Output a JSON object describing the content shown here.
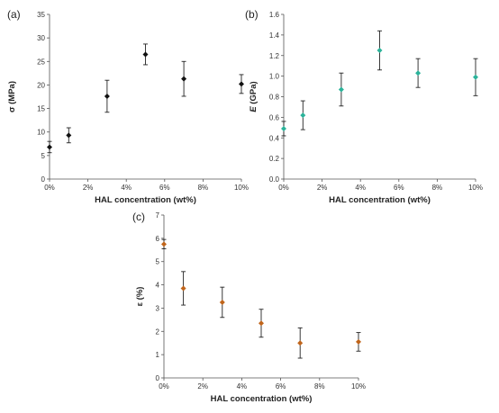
{
  "chart_data": [
    {
      "type": "scatter",
      "panel_label": "(a)",
      "xlabel": "HAL concentration (wt%)",
      "ylabel": "σ (MPa)",
      "ylabel_italic_part": "",
      "x_tick_labels": [
        "0%",
        "2%",
        "4%",
        "6%",
        "8%",
        "10%"
      ],
      "xlim": [
        0,
        10
      ],
      "ylim": [
        0,
        35
      ],
      "y_ticks": [
        0,
        5,
        10,
        15,
        20,
        25,
        30,
        35
      ],
      "y_tick_labels": [
        "0",
        "5",
        "10",
        "15",
        "20",
        "25",
        "30",
        "35"
      ],
      "marker_color": "#111111",
      "marker": "diamond",
      "grid": false,
      "points": [
        {
          "x": 0,
          "y": 6.8,
          "err": 1.2
        },
        {
          "x": 1,
          "y": 9.3,
          "err": 1.6
        },
        {
          "x": 3,
          "y": 17.6,
          "err": 3.4
        },
        {
          "x": 5,
          "y": 26.5,
          "err": 2.2
        },
        {
          "x": 7,
          "y": 21.3,
          "err": 3.7
        },
        {
          "x": 10,
          "y": 20.2,
          "err": 2.0
        }
      ]
    },
    {
      "type": "scatter",
      "panel_label": "(b)",
      "xlabel": "HAL concentration (wt%)",
      "ylabel": "(GPa)",
      "ylabel_italic_part": "E",
      "x_tick_labels": [
        "0%",
        "2%",
        "4%",
        "6%",
        "8%",
        "10%"
      ],
      "xlim": [
        0,
        10
      ],
      "ylim": [
        0,
        1.6
      ],
      "y_ticks": [
        0,
        0.2,
        0.4,
        0.6,
        0.8,
        1.0,
        1.2,
        1.4,
        1.6
      ],
      "y_tick_labels": [
        "0.0",
        "0.2",
        "0.4",
        "0.6",
        "0.8",
        "1.0",
        "1.2",
        "1.4",
        "1.6"
      ],
      "marker_color": "#2bb39a",
      "marker": "diamond",
      "grid": false,
      "points": [
        {
          "x": 0,
          "y": 0.49,
          "err": 0.07
        },
        {
          "x": 1,
          "y": 0.62,
          "err": 0.14
        },
        {
          "x": 3,
          "y": 0.87,
          "err": 0.16
        },
        {
          "x": 5,
          "y": 1.25,
          "err": 0.19
        },
        {
          "x": 7,
          "y": 1.03,
          "err": 0.14
        },
        {
          "x": 10,
          "y": 0.99,
          "err": 0.18
        }
      ]
    },
    {
      "type": "scatter",
      "panel_label": "(c)",
      "xlabel": "HAL concentration (wt%)",
      "ylabel": "ε (%)",
      "ylabel_italic_part": "",
      "x_tick_labels": [
        "0%",
        "2%",
        "4%",
        "6%",
        "8%",
        "10%"
      ],
      "xlim": [
        0,
        10
      ],
      "ylim": [
        0,
        7
      ],
      "y_ticks": [
        0,
        1,
        2,
        3,
        4,
        5,
        6,
        7
      ],
      "y_tick_labels": [
        "0",
        "1",
        "2",
        "3",
        "4",
        "5",
        "6",
        "7"
      ],
      "marker_color": "#c0651b",
      "marker": "diamond",
      "grid": false,
      "points": [
        {
          "x": 0,
          "y": 5.75,
          "err": 0.2
        },
        {
          "x": 1,
          "y": 3.85,
          "err": 0.72
        },
        {
          "x": 3,
          "y": 3.25,
          "err": 0.65
        },
        {
          "x": 5,
          "y": 2.35,
          "err": 0.6
        },
        {
          "x": 7,
          "y": 1.5,
          "err": 0.65
        },
        {
          "x": 10,
          "y": 1.55,
          "err": 0.4
        }
      ]
    }
  ]
}
